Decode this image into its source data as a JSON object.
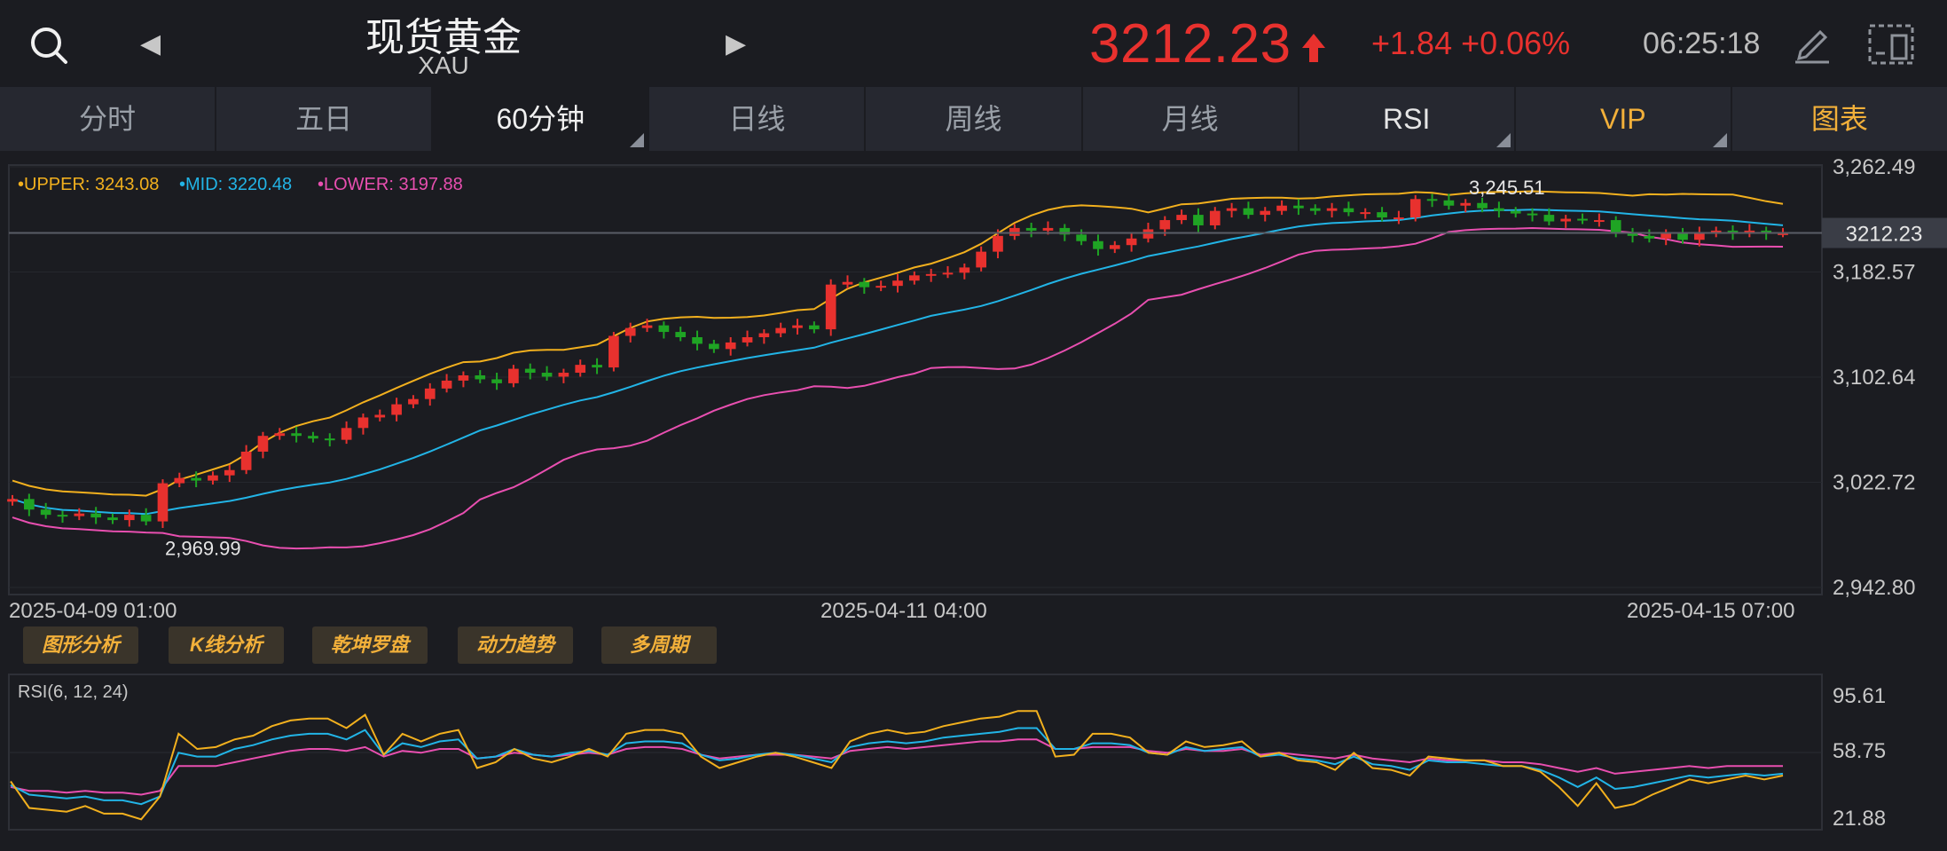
{
  "header": {
    "title": "现货黄金",
    "subtitle": "XAU",
    "price": "3212.23",
    "change": "+1.84 +0.06%",
    "time": "06:25:18",
    "icons": [
      "search-icon",
      "chevron-left-icon",
      "chevron-right-icon",
      "up-arrow-icon",
      "pen-icon",
      "layout-icon"
    ],
    "colors": {
      "up": "#e8312e",
      "down": "#1fa424",
      "accent": "#f2b03a"
    }
  },
  "tabs": [
    {
      "label": "分时"
    },
    {
      "label": "五日"
    },
    {
      "label": "60分钟",
      "active": true
    },
    {
      "label": "日线"
    },
    {
      "label": "周线"
    },
    {
      "label": "月线"
    },
    {
      "label": "RSI"
    },
    {
      "label": "VIP"
    },
    {
      "label": "图表"
    }
  ],
  "tools": [
    "图形分析",
    "K线分析",
    "乾坤罗盘",
    "动力趋势",
    "多周期"
  ],
  "chart_data": [
    {
      "type": "candlestick",
      "legend": {
        "upper": "•UPPER: 3243.08",
        "mid": "•MID: 3220.48",
        "lower": "•LOWER: 3197.88"
      },
      "series_colors": {
        "upper": "#f2b01e",
        "mid": "#22b4e6",
        "lower": "#e84fb0"
      },
      "y_ticks": [
        "3,262.49",
        "3,182.57",
        "3,102.64",
        "3,022.72",
        "2,942.80"
      ],
      "y_tick_values": [
        3262.49,
        3182.57,
        3102.64,
        3022.72,
        2942.8
      ],
      "current_price_label": "3212.23",
      "current_price": 3212.23,
      "x_labels": [
        "2025-04-09 01:00",
        "2025-04-11 04:00",
        "2025-04-15 07:00"
      ],
      "annotations": [
        {
          "text": "3,245.51",
          "value": 3245.51
        },
        {
          "text": "2,969.99",
          "value": 2969.99
        }
      ],
      "ylim": [
        2942.8,
        3262.49
      ],
      "close_approx": [
        3010,
        3002,
        2998,
        2997,
        2999,
        2996,
        2994,
        2998,
        2993,
        3022,
        3026,
        3024,
        3028,
        3032,
        3046,
        3058,
        3060,
        3058,
        3056,
        3055,
        3064,
        3072,
        3074,
        3082,
        3086,
        3094,
        3100,
        3104,
        3101,
        3098,
        3109,
        3106,
        3103,
        3106,
        3112,
        3110,
        3134,
        3140,
        3142,
        3137,
        3133,
        3128,
        3124,
        3129,
        3133,
        3136,
        3140,
        3142,
        3139,
        3173,
        3175,
        3171,
        3172,
        3176,
        3180,
        3181,
        3182,
        3186,
        3198,
        3210,
        3216,
        3214,
        3216,
        3211,
        3206,
        3200,
        3203,
        3208,
        3215,
        3222,
        3226,
        3218,
        3229,
        3231,
        3226,
        3229,
        3233,
        3231,
        3229,
        3231,
        3228,
        3228,
        3224,
        3224,
        3238,
        3237,
        3233,
        3235,
        3231,
        3229,
        3227,
        3226,
        3221,
        3223,
        3222,
        3222,
        3212,
        3210,
        3208,
        3212,
        3207,
        3212,
        3214,
        3212,
        3214,
        3212,
        3212
      ]
    },
    {
      "type": "line",
      "title": "RSI(6, 12, 24)",
      "y_ticks": [
        "95.61",
        "58.75",
        "21.88"
      ],
      "ylim": [
        21.88,
        95.61
      ],
      "series_colors": {
        "rsi6": "#f2b01e",
        "rsi12": "#22b4e6",
        "rsi24": "#e84fb0"
      },
      "rsi6_approx": [
        45,
        31,
        30,
        29,
        32,
        28,
        28,
        25,
        37,
        70,
        62,
        63,
        67,
        69,
        74,
        77,
        78,
        78,
        73,
        80,
        59,
        70,
        66,
        70,
        72,
        52,
        55,
        62,
        57,
        55,
        58,
        62,
        58,
        70,
        72,
        72,
        70,
        58,
        52,
        55,
        58,
        60,
        58,
        55,
        52,
        66,
        70,
        72,
        70,
        71,
        74,
        76,
        78,
        79,
        82,
        82,
        58,
        59,
        70,
        70,
        68,
        60,
        59,
        66,
        63,
        64,
        66,
        58,
        60,
        56,
        55,
        51,
        60,
        52,
        51,
        48,
        58,
        57,
        56,
        56,
        53,
        53,
        50,
        42,
        32,
        44,
        31,
        33,
        38,
        42,
        46,
        44,
        46,
        48,
        46,
        48
      ],
      "rsi12_approx": [
        43,
        38,
        37,
        36,
        37,
        35,
        35,
        33,
        37,
        60,
        58,
        58,
        62,
        64,
        67,
        69,
        70,
        70,
        67,
        72,
        59,
        65,
        63,
        66,
        67,
        57,
        58,
        62,
        59,
        58,
        60,
        61,
        59,
        65,
        66,
        66,
        65,
        59,
        56,
        57,
        59,
        60,
        59,
        57,
        55,
        63,
        65,
        66,
        65,
        66,
        68,
        69,
        70,
        71,
        73,
        73,
        62,
        62,
        65,
        65,
        64,
        60,
        59,
        63,
        61,
        62,
        63,
        58,
        59,
        57,
        56,
        54,
        58,
        54,
        53,
        51,
        56,
        55,
        55,
        54,
        53,
        53,
        51,
        47,
        42,
        47,
        41,
        42,
        44,
        46,
        48,
        47,
        48,
        49,
        48,
        49
      ],
      "rsi24_approx": [
        42,
        40,
        40,
        39,
        40,
        39,
        39,
        38,
        40,
        53,
        53,
        53,
        55,
        57,
        59,
        61,
        62,
        62,
        61,
        63,
        58,
        61,
        60,
        62,
        62,
        57,
        58,
        60,
        59,
        58,
        59,
        60,
        59,
        62,
        63,
        63,
        62,
        59,
        57,
        58,
        59,
        59,
        59,
        58,
        57,
        61,
        62,
        63,
        62,
        63,
        64,
        65,
        66,
        66,
        67,
        67,
        62,
        62,
        63,
        63,
        63,
        61,
        60,
        62,
        61,
        61,
        62,
        59,
        60,
        59,
        58,
        57,
        59,
        57,
        56,
        55,
        57,
        56,
        56,
        56,
        55,
        55,
        54,
        52,
        50,
        52,
        49,
        50,
        51,
        52,
        53,
        52,
        53,
        53,
        53,
        53
      ]
    }
  ]
}
